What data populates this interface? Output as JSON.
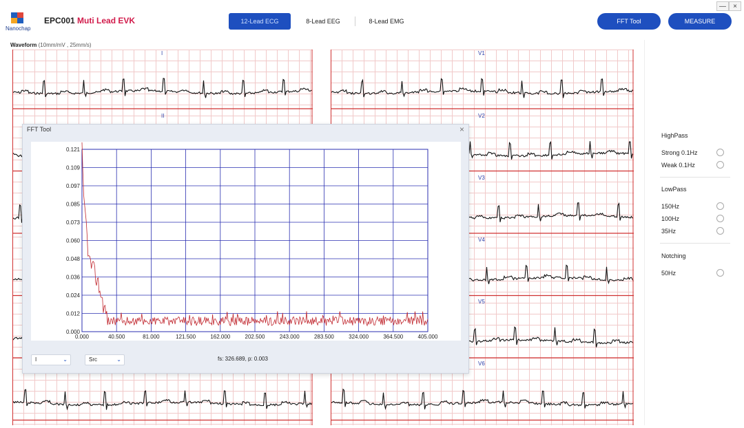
{
  "header": {
    "logo_text": "Nanochap",
    "title_main": "EPC001",
    "title_accent": "Muti Lead EVK",
    "tabs": [
      {
        "label": "12-Lead ECG",
        "active": true
      },
      {
        "label": "8-Lead EEG",
        "active": false
      },
      {
        "label": "8-Lead EMG",
        "active": false
      }
    ],
    "fft_button": "FFT Tool",
    "measure_button": "MEASURE",
    "minimize": "—",
    "close": "×",
    "accent_color": "#1e4fbf"
  },
  "waveform": {
    "title": "Waveform",
    "subtitle": "(10mm/mV , 25mm/s)",
    "leads_left": [
      "I",
      "II",
      "",
      "",
      "",
      ""
    ],
    "leads_right": [
      "V1",
      "V2",
      "V3",
      "V4",
      "V5",
      "V6"
    ]
  },
  "side_panel": {
    "highpass_title": "HighPass",
    "highpass": [
      "Strong 0.1Hz",
      "Weak 0.1Hz"
    ],
    "lowpass_title": "LowPass",
    "lowpass": [
      "150Hz",
      "100Hz",
      "35Hz"
    ],
    "notching_title": "Notching",
    "notching": [
      "50Hz"
    ]
  },
  "fft_dialog": {
    "title": "FFT Tool",
    "close": "×",
    "lead_select": "I",
    "source_select": "Src",
    "status": "fs: 326.689, p: 0.003"
  },
  "chart_data": {
    "type": "line",
    "title": "",
    "xlabel": "",
    "ylabel": "",
    "xlim": [
      0,
      405
    ],
    "ylim": [
      0,
      0.121
    ],
    "x_ticks": [
      "0.000",
      "40.500",
      "81.000",
      "121.500",
      "162.000",
      "202.500",
      "243.000",
      "283.500",
      "324.000",
      "364.500",
      "405.000"
    ],
    "y_ticks": [
      "0.000",
      "0.012",
      "0.024",
      "0.036",
      "0.048",
      "0.060",
      "0.073",
      "0.085",
      "0.097",
      "0.109",
      "0.121"
    ],
    "grid": true,
    "series_color": "#c0262d",
    "grid_color": "#2a2fb0",
    "peaks": [
      {
        "x": 0,
        "y": 0.121
      },
      {
        "x": 2,
        "y": 0.085
      },
      {
        "x": 4,
        "y": 0.078
      },
      {
        "x": 8,
        "y": 0.048
      },
      {
        "x": 14,
        "y": 0.04
      },
      {
        "x": 20,
        "y": 0.03
      },
      {
        "x": 25,
        "y": 0.018
      },
      {
        "x": 30,
        "y": 0.009
      },
      {
        "x": 150,
        "y": 0.011
      },
      {
        "x": 405,
        "y": 0.004
      }
    ]
  }
}
